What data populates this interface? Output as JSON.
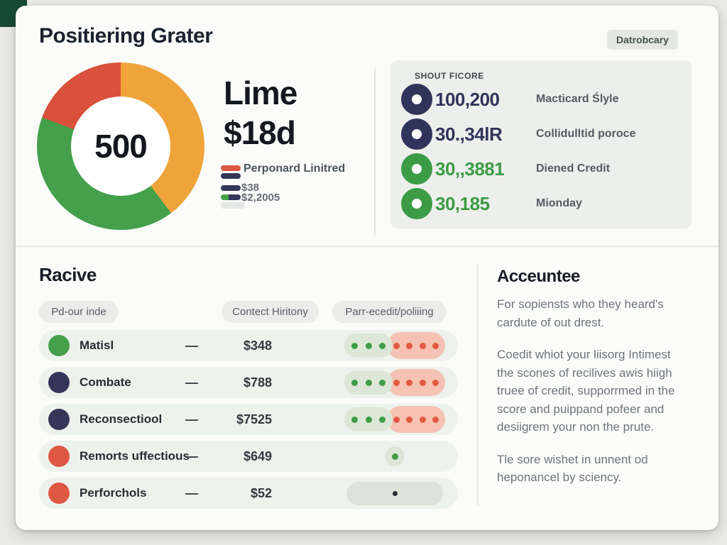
{
  "header": {
    "title": "Positiering Grater",
    "button_label": "Datrobcary"
  },
  "donut": {
    "center_value": "500"
  },
  "chart_data": {
    "type": "pie",
    "title": "Positiering Grater score donut",
    "center_label": "500",
    "center_score": 500,
    "segments": [
      {
        "label": "warning-orange",
        "color": "#efa43a",
        "start_deg": 0,
        "end_deg": 143,
        "pct": 39.7
      },
      {
        "label": "good-green",
        "color": "#44a04b",
        "start_deg": 143,
        "end_deg": 290,
        "pct": 40.8
      },
      {
        "label": "bad-red",
        "color": "#d9503c",
        "start_deg": 290,
        "end_deg": 360,
        "pct": 19.5
      }
    ],
    "legend_position": "right"
  },
  "summary": {
    "line1": "Lime",
    "line2": "$18d",
    "colors": {
      "red": "#dd5742",
      "navy": "#343759",
      "green": "#44a04b",
      "gray": "#e5e7e4"
    },
    "legend": [
      {
        "label": "Perponard Linitred"
      },
      {
        "label": "$38"
      },
      {
        "label": "$2,2005"
      }
    ]
  },
  "score_panel": {
    "header": "SHOUT FICORE",
    "rows": [
      {
        "value": "100,200",
        "label": "Macticard Ślyle",
        "color": "#30345a"
      },
      {
        "value": "30.,34lR",
        "label": "Collidulltid poroce",
        "color": "#30345a"
      },
      {
        "value": "30,,3881",
        "label": "Diened Credit",
        "color": "#3c9c45"
      },
      {
        "value": "30,185",
        "label": "Mionday",
        "color": "#3c9c45"
      }
    ]
  },
  "table": {
    "title": "Racive",
    "columns": [
      "Pd-our inde",
      "Contect Hiritony",
      "Parr-ecedit/poliiing"
    ],
    "indicator_colors": {
      "dot_green": "#3f9d46",
      "dot_red": "#e05a41",
      "dot_dark": "#2b2f36",
      "pill_green": "#dde7d8",
      "pill_red": "#f6c2b4",
      "pill_gray": "#dee3da"
    },
    "rows": [
      {
        "label": "Matisl",
        "dash": "—",
        "amount": "$348",
        "dot_color": "#44a04b",
        "indicator": {
          "type": "split",
          "green_dots": 3,
          "red_dots": 4
        }
      },
      {
        "label": "Combate",
        "dash": "—",
        "amount": "$788",
        "dot_color": "#343759",
        "indicator": {
          "type": "split",
          "green_dots": 3,
          "red_dots": 4
        }
      },
      {
        "label": "Reconsectiool",
        "dash": "—",
        "amount": "$7525",
        "dot_color": "#343759",
        "indicator": {
          "type": "split",
          "green_dots": 3,
          "red_dots": 4
        }
      },
      {
        "label": "Remorts uffectious",
        "dash": "—",
        "amount": "$649",
        "dot_color": "#dd5742",
        "indicator": {
          "type": "single_green"
        }
      },
      {
        "label": "Perforchols",
        "dash": "—",
        "amount": "$52",
        "dot_color": "#dd5742",
        "indicator": {
          "type": "single_dark"
        }
      }
    ]
  },
  "info": {
    "title": "Acceuntee",
    "paragraphs": [
      "For sopiensts who they heard's cardute of out drest.",
      "Coedit whiot your liisorg Intimest the scones of recilives awis hiigh truee of credit, supporrmed in the score and puippand pofeer and desiigrem your non the prute.",
      "Tle sore wishet in unnent od heponancel by sciency."
    ]
  }
}
